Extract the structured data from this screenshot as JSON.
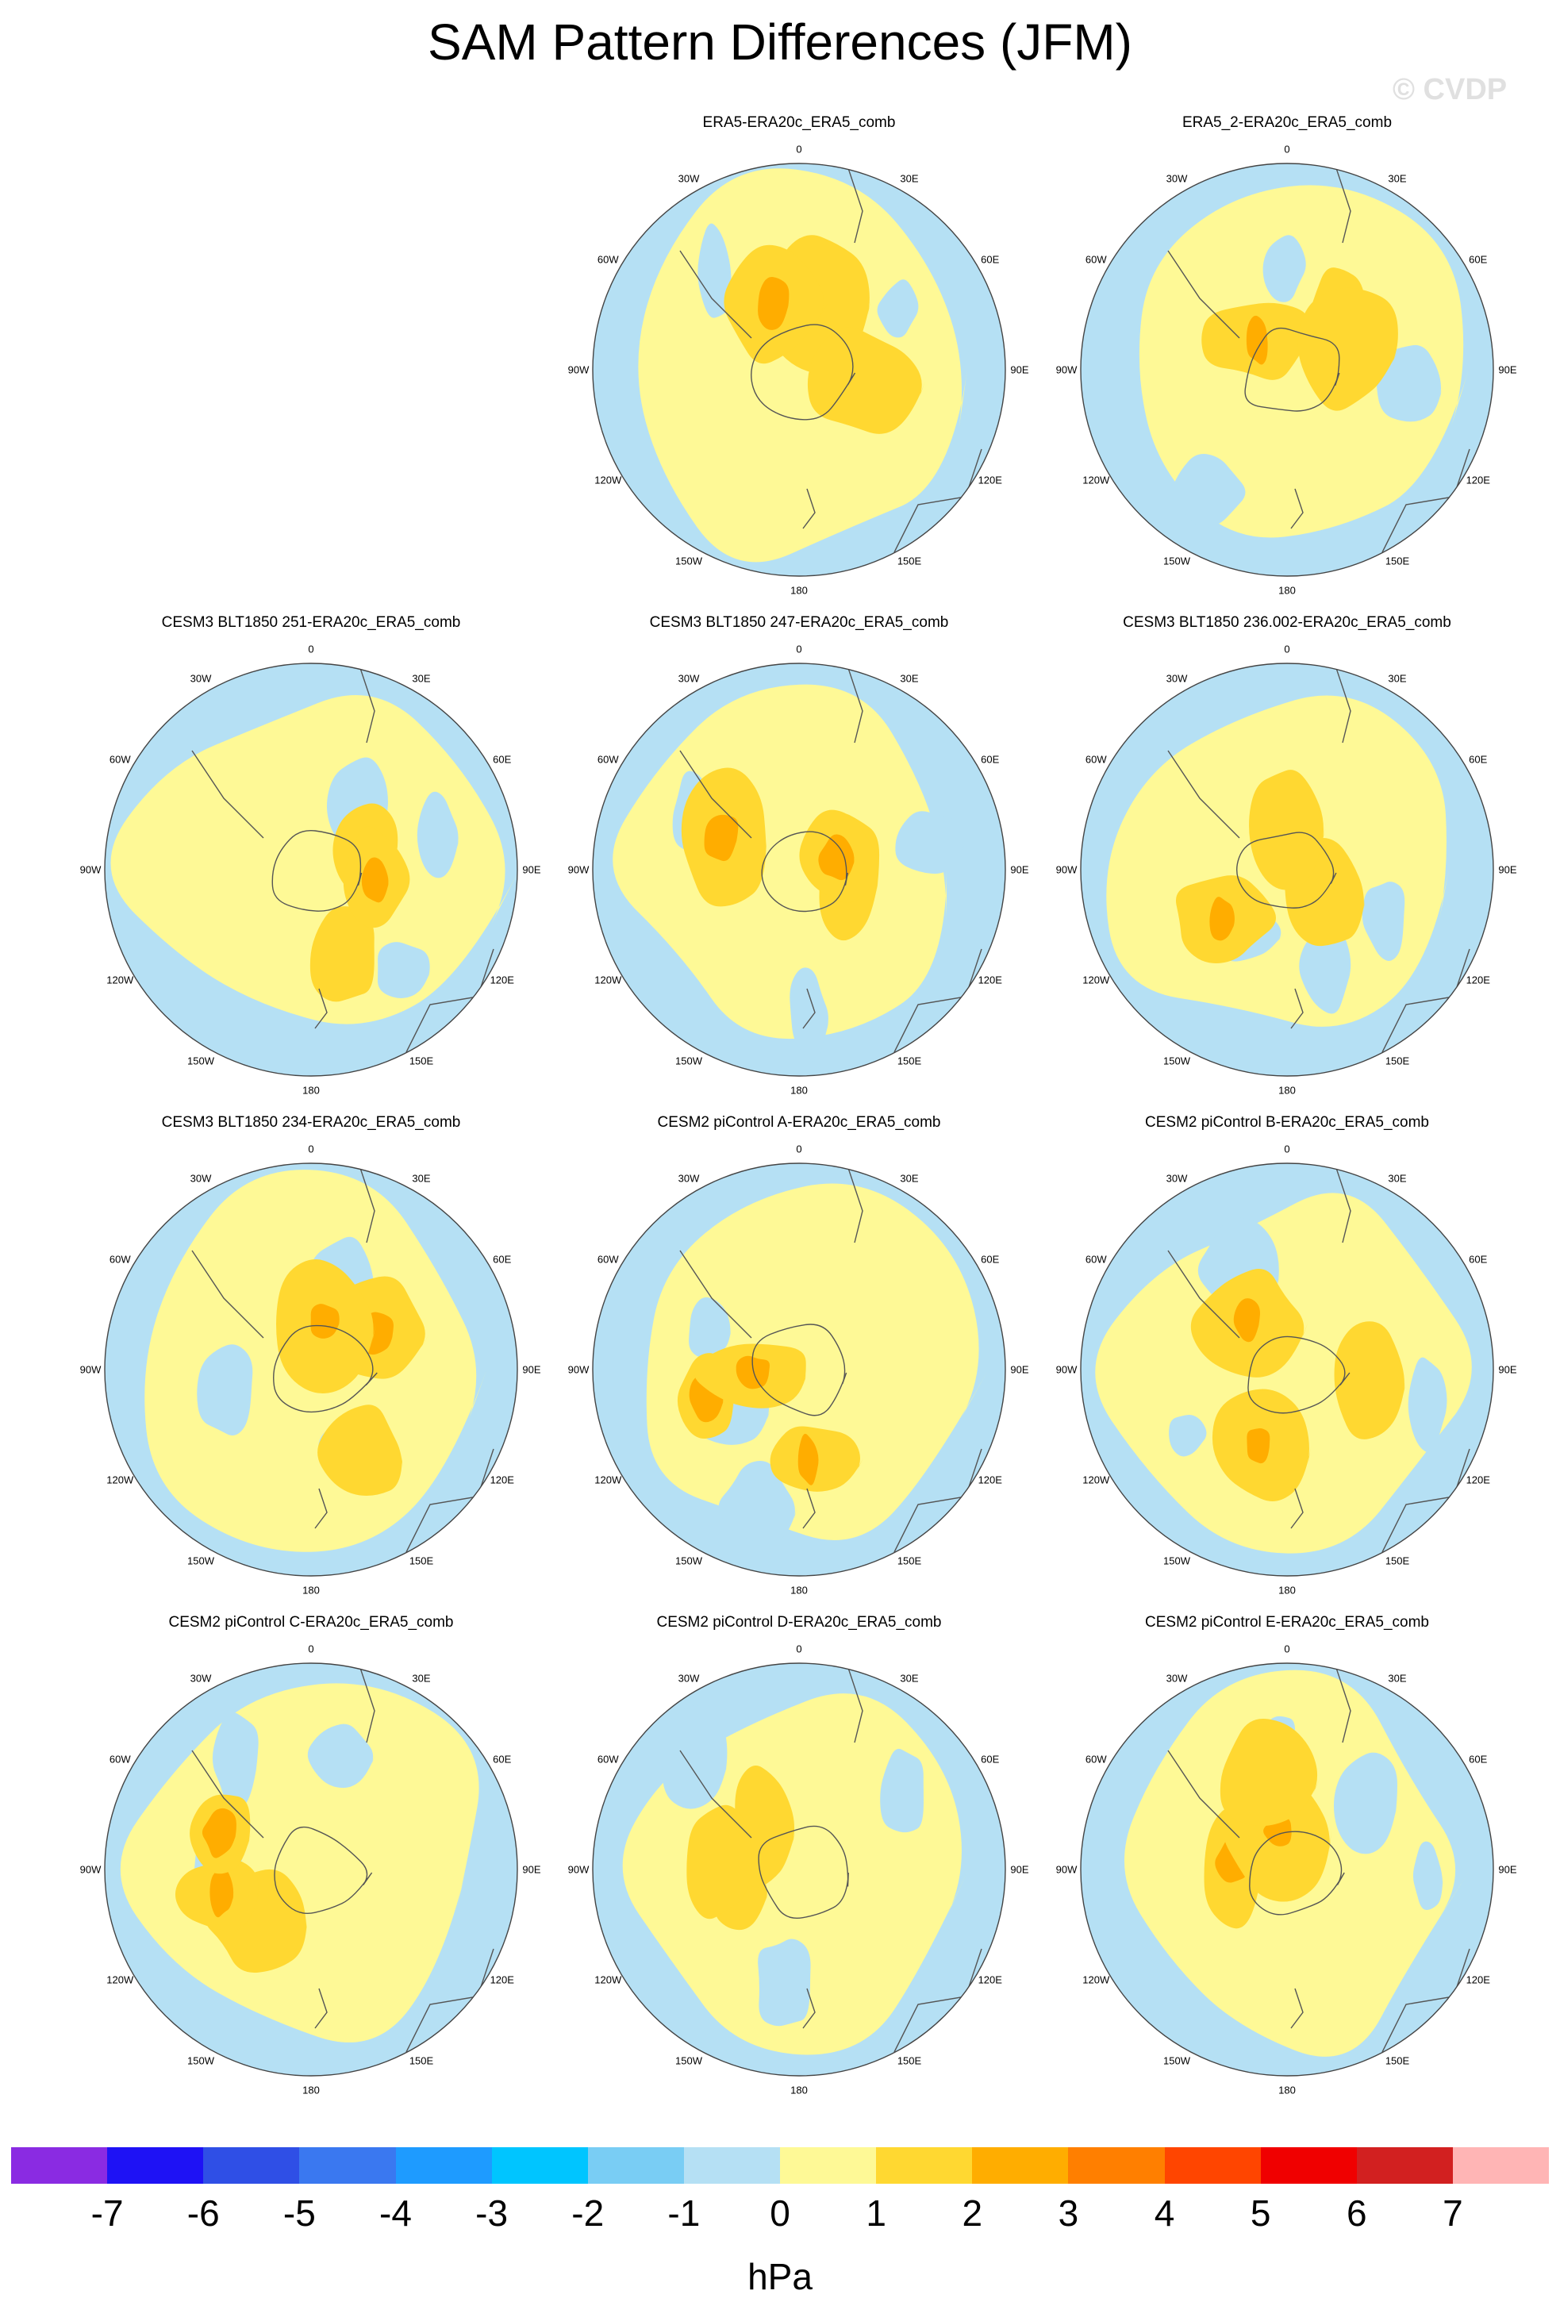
{
  "title": "SAM Pattern Differences (JFM)",
  "watermark": "© CVDP",
  "units": "hPa",
  "colorbar": {
    "colors": [
      "#8a2be2",
      "#1e12f5",
      "#2f4fe6",
      "#3a78f0",
      "#1e9bff",
      "#00c5ff",
      "#79cdf4",
      "#b5e0f4",
      "#fef996",
      "#ffd831",
      "#ffad00",
      "#ff7f00",
      "#ff4500",
      "#f00000",
      "#d22020",
      "#ffb5b5"
    ],
    "labels": [
      "-7",
      "-6",
      "-5",
      "-4",
      "-3",
      "-2",
      "-1",
      "0",
      "1",
      "2",
      "3",
      "4",
      "5",
      "6",
      "7"
    ]
  },
  "longitude_labels": [
    "0",
    "30E",
    "60E",
    "90E",
    "120E",
    "150E",
    "180",
    "150W",
    "120W",
    "90W",
    "60W",
    "30W"
  ],
  "panels": [
    {
      "title": "ERA5-ERA20c_ERA5_comb",
      "row": 0,
      "col": 1
    },
    {
      "title": "ERA5_2-ERA20c_ERA5_comb",
      "row": 0,
      "col": 2
    },
    {
      "title": "CESM3 BLT1850 251-ERA20c_ERA5_comb",
      "row": 1,
      "col": 0
    },
    {
      "title": "CESM3 BLT1850 247-ERA20c_ERA5_comb",
      "row": 1,
      "col": 1
    },
    {
      "title": "CESM3 BLT1850 236.002-ERA20c_ERA5_comb",
      "row": 1,
      "col": 2
    },
    {
      "title": "CESM3 BLT1850 234-ERA20c_ERA5_comb",
      "row": 2,
      "col": 0
    },
    {
      "title": "CESM2 piControl A-ERA20c_ERA5_comb",
      "row": 2,
      "col": 1
    },
    {
      "title": "CESM2 piControl B-ERA20c_ERA5_comb",
      "row": 2,
      "col": 2
    },
    {
      "title": "CESM2 piControl C-ERA20c_ERA5_comb",
      "row": 3,
      "col": 0
    },
    {
      "title": "CESM2 piControl D-ERA20c_ERA5_comb",
      "row": 3,
      "col": 1
    },
    {
      "title": "CESM2 piControl E-ERA20c_ERA5_comb",
      "row": 3,
      "col": 2
    }
  ]
}
